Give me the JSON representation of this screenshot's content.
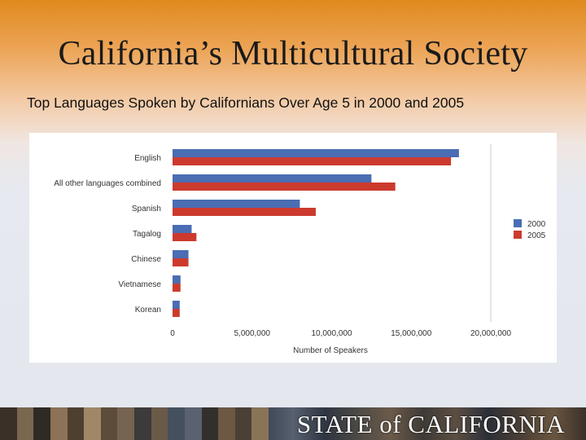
{
  "slide": {
    "title": "California’s Multicultural Society",
    "subtitle": "Top Languages Spoken by Californians Over Age 5 in 2000 and 2005",
    "footer_brand": "STATE of CALIFORNIA"
  },
  "colors": {
    "series_2000": "#4a6db3",
    "series_2005": "#cc3a2e",
    "gridline": "#c8c8c8"
  },
  "chart_data": {
    "type": "bar",
    "orientation": "horizontal",
    "categories": [
      "English",
      "All other languages combined",
      "Spanish",
      "Tagalog",
      "Chinese",
      "Vietnamese",
      "Korean"
    ],
    "series": [
      {
        "name": "2000",
        "values": [
          18000000,
          12500000,
          8000000,
          1200000,
          1000000,
          500000,
          450000
        ]
      },
      {
        "name": "2005",
        "values": [
          17500000,
          14000000,
          9000000,
          1500000,
          1000000,
          500000,
          450000
        ]
      }
    ],
    "x_ticks": [
      "0",
      "5,000,000",
      "10,000,000",
      "15,000,000",
      "20,000,000"
    ],
    "x_tick_values": [
      0,
      5000000,
      10000000,
      15000000,
      20000000
    ],
    "xlim": [
      0,
      20000000
    ],
    "xlabel": "Number of Speakers",
    "legend_position": "right",
    "grid": "vertical-right-only"
  }
}
